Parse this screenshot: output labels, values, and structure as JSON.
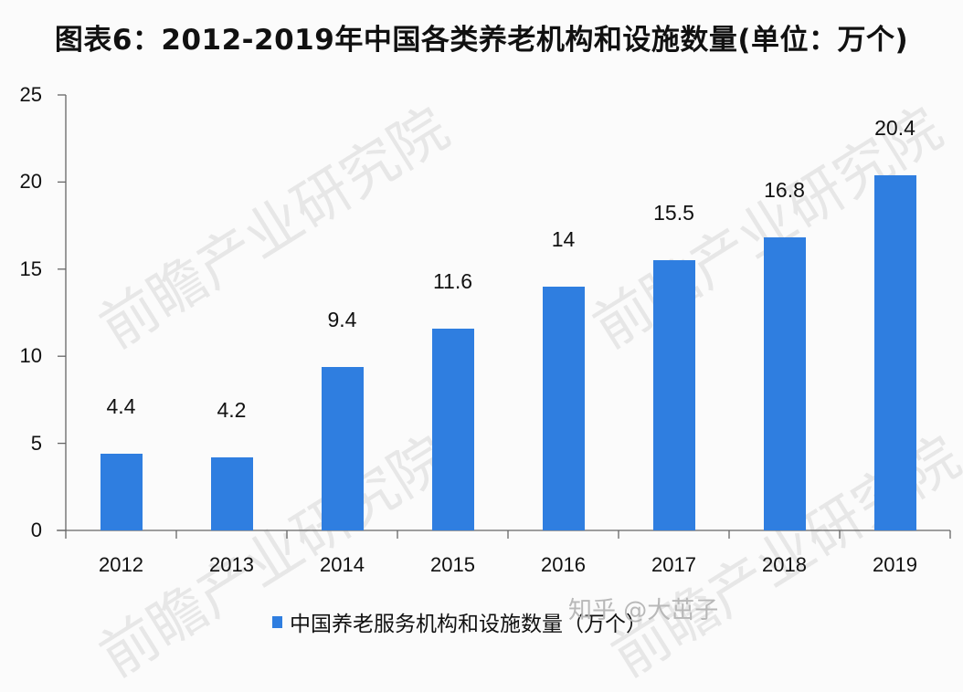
{
  "title": "图表6：2012-2019年中国各类养老机构和设施数量(单位：万个)",
  "legend": {
    "label": "中国养老服务机构和设施数量（万个）",
    "color": "#2f7ee0"
  },
  "credit": "知乎 @大茁子",
  "watermark": "前瞻产业研究院",
  "chart_data": {
    "type": "bar",
    "title": "图表6：2012-2019年中国各类养老机构和设施数量(单位：万个)",
    "xlabel": "",
    "ylabel": "",
    "categories": [
      "2012",
      "2013",
      "2014",
      "2015",
      "2016",
      "2017",
      "2018",
      "2019"
    ],
    "series": [
      {
        "name": "中国养老服务机构和设施数量（万个）",
        "values": [
          4.4,
          4.2,
          9.4,
          11.6,
          14,
          15.5,
          16.8,
          20.4
        ],
        "color": "#2f7ee0"
      }
    ],
    "data_labels": [
      "4.4",
      "4.2",
      "9.4",
      "11.6",
      "14",
      "15.5",
      "16.8",
      "20.4"
    ],
    "ylim": [
      0,
      25
    ],
    "yticks": [
      0,
      5,
      10,
      15,
      20,
      25
    ],
    "grid": false,
    "legend_position": "bottom"
  }
}
